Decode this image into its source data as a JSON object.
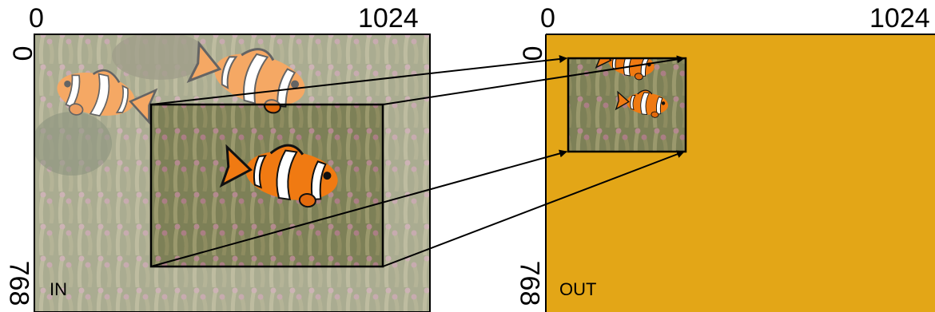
{
  "input_panel": {
    "x_axis_start": "0",
    "x_axis_end": "1024",
    "y_axis_start": "0",
    "y_axis_end": "768",
    "corner_label": "IN"
  },
  "output_panel": {
    "x_axis_start": "0",
    "x_axis_end": "1024",
    "y_axis_start": "0",
    "y_axis_end": "768",
    "corner_label": "OUT",
    "background_color": "#E3A617"
  },
  "colors": {
    "fish_orange": "#F07A12",
    "stripe_white": "#FFFFFF",
    "anemone_tentacle": "#A09A6E",
    "anemone_tip": "#D49AAA",
    "reef_dark": "#4E5A3A"
  }
}
